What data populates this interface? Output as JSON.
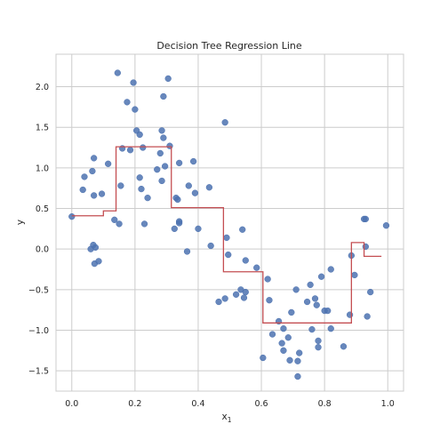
{
  "chart_data": {
    "type": "scatter",
    "title": "Decision Tree Regression Line",
    "xlabel": "x",
    "xlabel_sub": "1",
    "ylabel": "y",
    "xlim": [
      -0.05,
      1.05
    ],
    "ylim": [
      -1.75,
      2.4
    ],
    "xticks": [
      0.0,
      0.2,
      0.4,
      0.6,
      0.8,
      1.0
    ],
    "xtick_labels": [
      "0.0",
      "0.2",
      "0.4",
      "0.6",
      "0.8",
      "1.0"
    ],
    "yticks": [
      -1.5,
      -1.0,
      -0.5,
      0.0,
      0.5,
      1.0,
      1.5,
      2.0
    ],
    "ytick_labels": [
      "−1.5",
      "−1.0",
      "−0.5",
      "0.0",
      "0.5",
      "1.0",
      "1.5",
      "2.0"
    ],
    "grid": true,
    "colors": {
      "points": "#4c72b0",
      "line": "#c44e52",
      "grid": "#cccccc"
    },
    "series": [
      {
        "kind": "scatter",
        "points": [
          [
            0.0,
            0.4
          ],
          [
            0.035,
            0.73
          ],
          [
            0.04,
            0.89
          ],
          [
            0.06,
            0.0
          ],
          [
            0.065,
            0.96
          ],
          [
            0.068,
            0.05
          ],
          [
            0.07,
            1.12
          ],
          [
            0.07,
            0.66
          ],
          [
            0.072,
            -0.18
          ],
          [
            0.075,
            0.02
          ],
          [
            0.085,
            -0.15
          ],
          [
            0.095,
            0.68
          ],
          [
            0.115,
            1.05
          ],
          [
            0.135,
            0.36
          ],
          [
            0.145,
            2.17
          ],
          [
            0.15,
            0.31
          ],
          [
            0.155,
            0.78
          ],
          [
            0.16,
            1.24
          ],
          [
            0.175,
            1.81
          ],
          [
            0.185,
            1.22
          ],
          [
            0.195,
            2.05
          ],
          [
            0.2,
            1.72
          ],
          [
            0.205,
            1.46
          ],
          [
            0.215,
            0.88
          ],
          [
            0.215,
            1.41
          ],
          [
            0.22,
            0.74
          ],
          [
            0.225,
            1.25
          ],
          [
            0.23,
            0.31
          ],
          [
            0.24,
            0.63
          ],
          [
            0.27,
            0.98
          ],
          [
            0.28,
            1.18
          ],
          [
            0.285,
            1.46
          ],
          [
            0.285,
            0.84
          ],
          [
            0.29,
            1.88
          ],
          [
            0.29,
            1.37
          ],
          [
            0.295,
            1.02
          ],
          [
            0.305,
            2.1
          ],
          [
            0.31,
            1.27
          ],
          [
            0.325,
            0.25
          ],
          [
            0.33,
            0.63
          ],
          [
            0.335,
            0.61
          ],
          [
            0.34,
            0.34
          ],
          [
            0.34,
            0.32
          ],
          [
            0.34,
            1.06
          ],
          [
            0.365,
            -0.03
          ],
          [
            0.37,
            0.78
          ],
          [
            0.385,
            1.08
          ],
          [
            0.39,
            0.69
          ],
          [
            0.4,
            0.25
          ],
          [
            0.435,
            0.76
          ],
          [
            0.44,
            0.04
          ],
          [
            0.465,
            -0.65
          ],
          [
            0.485,
            1.56
          ],
          [
            0.485,
            -0.61
          ],
          [
            0.49,
            0.14
          ],
          [
            0.495,
            -0.07
          ],
          [
            0.52,
            -0.56
          ],
          [
            0.535,
            -0.5
          ],
          [
            0.54,
            0.24
          ],
          [
            0.545,
            -0.6
          ],
          [
            0.55,
            -0.53
          ],
          [
            0.55,
            -0.14
          ],
          [
            0.585,
            -0.23
          ],
          [
            0.605,
            -1.34
          ],
          [
            0.62,
            -0.37
          ],
          [
            0.625,
            -0.63
          ],
          [
            0.635,
            -1.05
          ],
          [
            0.655,
            -0.89
          ],
          [
            0.665,
            -1.16
          ],
          [
            0.67,
            -1.25
          ],
          [
            0.67,
            -0.98
          ],
          [
            0.685,
            -1.09
          ],
          [
            0.69,
            -1.37
          ],
          [
            0.695,
            -0.78
          ],
          [
            0.71,
            -0.5
          ],
          [
            0.715,
            -1.57
          ],
          [
            0.715,
            -1.38
          ],
          [
            0.72,
            -1.28
          ],
          [
            0.745,
            -0.65
          ],
          [
            0.755,
            -0.44
          ],
          [
            0.76,
            -0.99
          ],
          [
            0.77,
            -0.61
          ],
          [
            0.775,
            -0.69
          ],
          [
            0.78,
            -1.13
          ],
          [
            0.78,
            -1.21
          ],
          [
            0.79,
            -0.34
          ],
          [
            0.8,
            -0.76
          ],
          [
            0.81,
            -0.76
          ],
          [
            0.82,
            -0.25
          ],
          [
            0.82,
            -0.98
          ],
          [
            0.86,
            -1.2
          ],
          [
            0.88,
            -0.81
          ],
          [
            0.885,
            -0.08
          ],
          [
            0.895,
            -0.32
          ],
          [
            0.925,
            0.37
          ],
          [
            0.93,
            0.37
          ],
          [
            0.93,
            0.03
          ],
          [
            0.935,
            -0.83
          ],
          [
            0.945,
            -0.53
          ],
          [
            0.995,
            0.29
          ]
        ]
      },
      {
        "kind": "step",
        "x": [
          0.0,
          0.1,
          0.1,
          0.14,
          0.14,
          0.315,
          0.315,
          0.48,
          0.48,
          0.605,
          0.605,
          0.885,
          0.885,
          0.925,
          0.925,
          0.98
        ],
        "y": [
          0.41,
          0.41,
          0.47,
          0.47,
          1.26,
          1.26,
          0.51,
          0.51,
          -0.28,
          -0.28,
          -0.91,
          -0.91,
          0.08,
          0.08,
          -0.09,
          -0.09
        ]
      }
    ]
  }
}
